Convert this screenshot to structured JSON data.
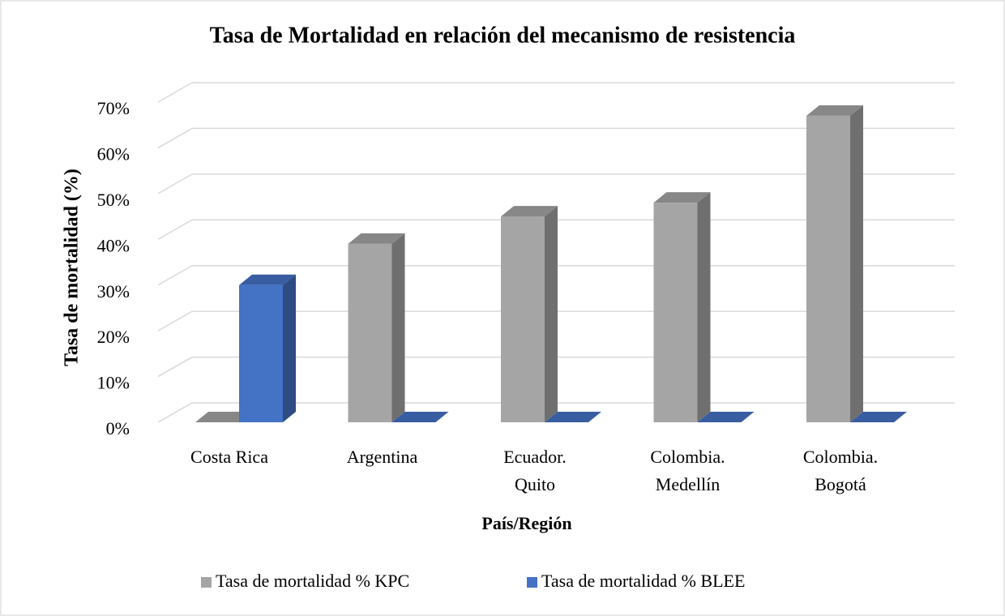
{
  "chart_data": {
    "type": "bar3d",
    "title": "Tasa de Mortalidad en relación del mecanismo de resistencia",
    "xlabel": "País/Región",
    "ylabel": "Tasa de mortalidad (%)",
    "categories": [
      [
        "Costa Rica"
      ],
      [
        "Argentina"
      ],
      [
        "Ecuador.",
        "Quito"
      ],
      [
        "Colombia.",
        "Medellín"
      ],
      [
        "Colombia.",
        "Bogotá"
      ]
    ],
    "series": [
      {
        "name": "Tasa de mortalidad % KPC",
        "color": "#a5a5a5",
        "values": [
          0,
          39,
          45,
          48,
          67
        ]
      },
      {
        "name": "Tasa de mortalidad % BLEE",
        "color": "#4472c4",
        "values": [
          30,
          0,
          0,
          0,
          0
        ]
      }
    ],
    "ylim": [
      0,
      70
    ],
    "yticks": [
      {
        "value": 0,
        "label": "0%"
      },
      {
        "value": 10,
        "label": "10%"
      },
      {
        "value": 20,
        "label": "20%"
      },
      {
        "value": 30,
        "label": "30%"
      },
      {
        "value": 40,
        "label": "40%"
      },
      {
        "value": 50,
        "label": "50%"
      },
      {
        "value": 60,
        "label": "60%"
      },
      {
        "value": 70,
        "label": "70%"
      }
    ],
    "grid": true,
    "legend": "bottom"
  }
}
